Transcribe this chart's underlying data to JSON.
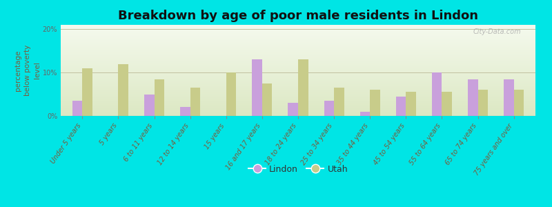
{
  "title": "Breakdown by age of poor male residents in Lindon",
  "categories": [
    "Under 5 years",
    "5 years",
    "6 to 11 years",
    "12 to 14 years",
    "15 years",
    "16 and 17 years",
    "18 to 24 years",
    "25 to 34 years",
    "35 to 44 years",
    "45 to 54 years",
    "55 to 64 years",
    "65 to 74 years",
    "75 years and over"
  ],
  "lindon_values": [
    3.5,
    0.01,
    5.0,
    2.0,
    0.01,
    13.0,
    3.0,
    3.5,
    1.0,
    4.5,
    10.0,
    8.5,
    8.5
  ],
  "utah_values": [
    11.0,
    12.0,
    8.5,
    6.5,
    10.0,
    7.5,
    13.0,
    6.5,
    6.0,
    5.5,
    5.5,
    6.0,
    6.0
  ],
  "lindon_color": "#c9a0dc",
  "utah_color": "#c8cc8a",
  "ylabel": "percentage\nbelow poverty\nlevel",
  "ylim": [
    0,
    21
  ],
  "yticks": [
    0,
    10,
    20
  ],
  "ytick_labels": [
    "0%",
    "10%",
    "20%"
  ],
  "plot_bg_top": "#f5f8ee",
  "plot_bg_bottom": "#dce8c8",
  "outer_bg": "#00e5e5",
  "bar_width": 0.28,
  "title_fontsize": 13,
  "axis_label_fontsize": 7.5,
  "tick_fontsize": 7.0,
  "legend_fontsize": 9,
  "watermark": "City-Data.com"
}
